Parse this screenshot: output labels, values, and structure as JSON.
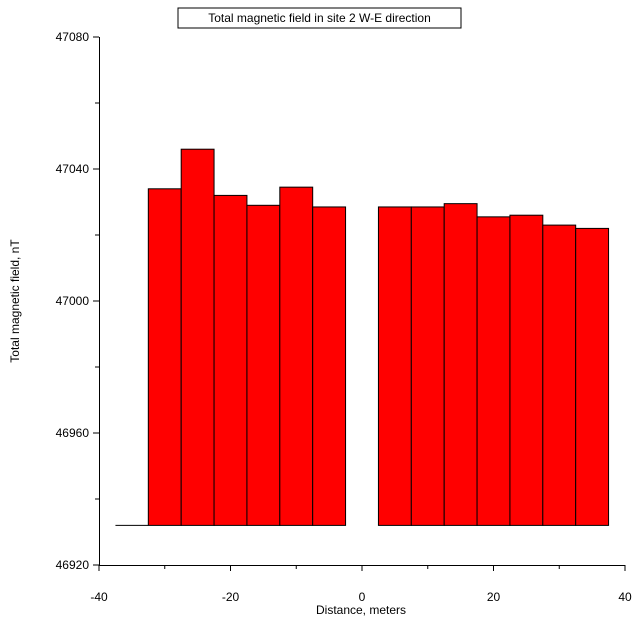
{
  "chart_data": {
    "type": "bar",
    "title": "Total magnetic field in site 2 W-E direction",
    "xlabel": "Distance, meters",
    "ylabel": "Total magnetic field, nT",
    "xlim": [
      -40,
      40
    ],
    "ylim": [
      46920,
      47080
    ],
    "baseline": 46932,
    "bar_width": 5,
    "xticks": [
      -40,
      -20,
      0,
      20,
      40
    ],
    "yticks": [
      46920,
      46960,
      47000,
      47040,
      47080
    ],
    "bar_color": "#ff0000",
    "edge_color": "#000000",
    "grid": false,
    "x": [
      -30,
      -25,
      -20,
      -15,
      -10,
      -5,
      0,
      5,
      10,
      15,
      20,
      25,
      30,
      35
    ],
    "values": [
      47034,
      47046,
      47032,
      47029,
      47034.5,
      47028.5,
      46932,
      47028.5,
      47028.5,
      47029.5,
      47025.5,
      47026,
      47023,
      47022
    ]
  },
  "baseline_segment": {
    "x_start": -37.5,
    "x_end": -32.5
  }
}
